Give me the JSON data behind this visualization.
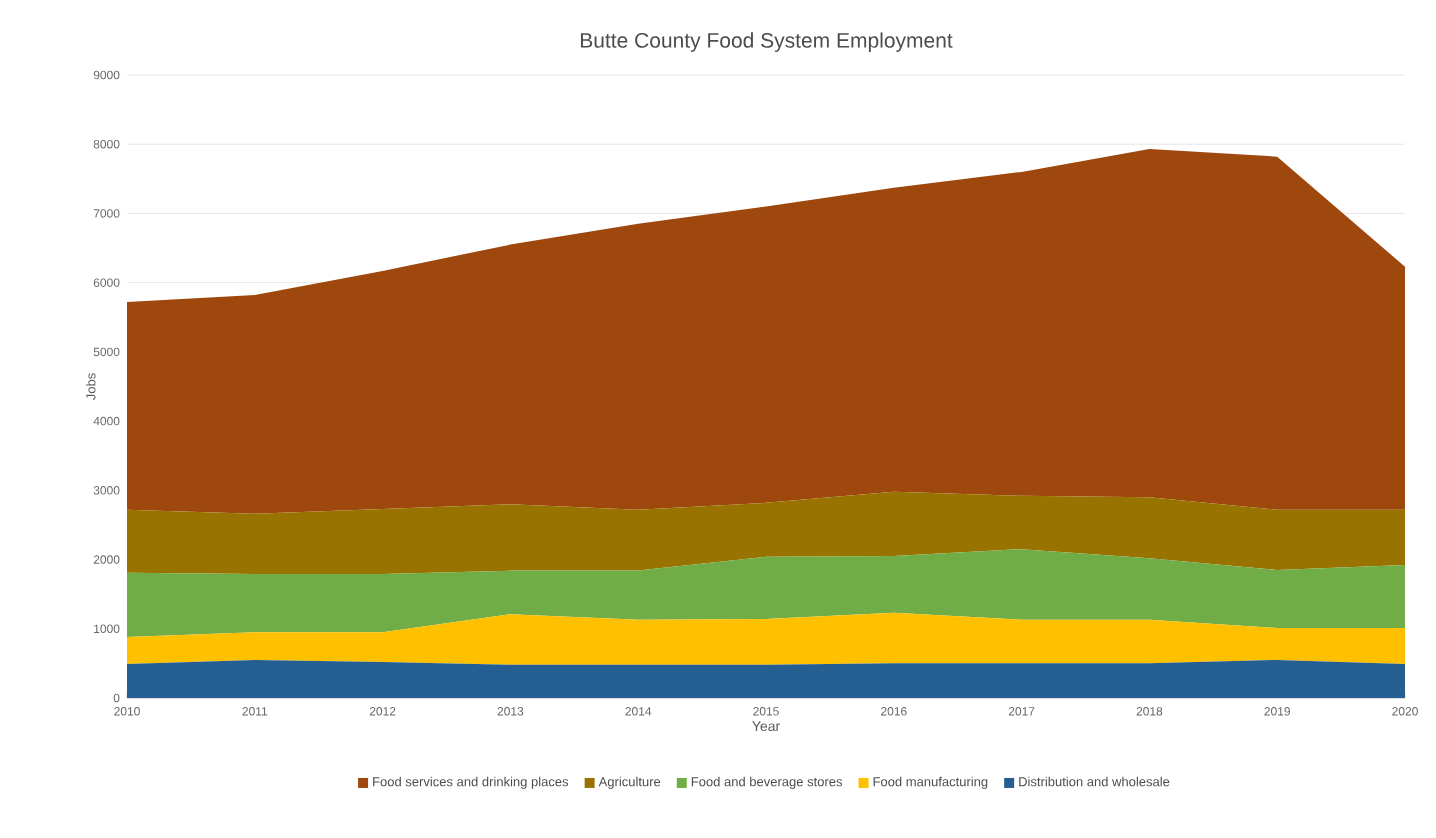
{
  "chart_data": {
    "type": "area",
    "title": "Butte County Food System Employment",
    "xlabel": "Year",
    "ylabel": "Jobs",
    "x": [
      2010,
      2011,
      2012,
      2013,
      2014,
      2015,
      2016,
      2017,
      2018,
      2019,
      2020
    ],
    "stacked": true,
    "series": [
      {
        "name": "Distribution and wholesale",
        "color": "#255e91",
        "values": [
          490,
          550,
          520,
          480,
          480,
          480,
          500,
          500,
          500,
          550,
          490
        ]
      },
      {
        "name": "Food manufacturing",
        "color": "#ffc000",
        "values": [
          390,
          400,
          430,
          730,
          650,
          660,
          730,
          630,
          630,
          460,
          520
        ]
      },
      {
        "name": "Food and beverage stores",
        "color": "#70ad47",
        "values": [
          930,
          840,
          840,
          630,
          710,
          900,
          820,
          1020,
          890,
          840,
          910
        ]
      },
      {
        "name": "Agriculture",
        "color": "#997300",
        "values": [
          910,
          870,
          940,
          960,
          880,
          780,
          930,
          770,
          880,
          870,
          800
        ]
      },
      {
        "name": "Food services and drinking places",
        "color": "#9e480e",
        "values": [
          3000,
          3160,
          3440,
          3750,
          4130,
          4280,
          4390,
          4680,
          5030,
          5100,
          3510
        ]
      }
    ],
    "xlim": [
      2010,
      2020
    ],
    "xticks": [
      2010,
      2011,
      2012,
      2013,
      2014,
      2015,
      2016,
      2017,
      2018,
      2019,
      2020
    ],
    "ylim": [
      0,
      9000
    ],
    "yticks": [
      0,
      1000,
      2000,
      3000,
      4000,
      5000,
      6000,
      7000,
      8000,
      9000
    ],
    "grid": "y",
    "legend": "bottom"
  }
}
